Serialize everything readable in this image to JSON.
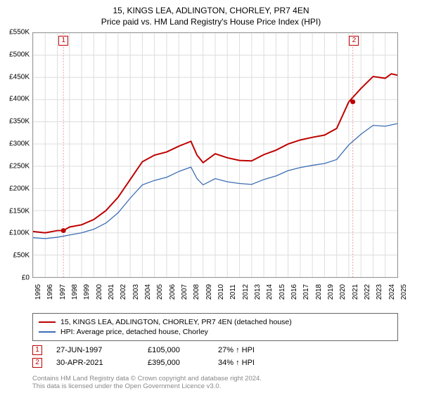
{
  "title": "15, KINGS LEA, ADLINGTON, CHORLEY, PR7 4EN",
  "subtitle": "Price paid vs. HM Land Registry's House Price Index (HPI)",
  "chart": {
    "type": "line",
    "background_color": "#ffffff",
    "border_color": "#999999",
    "grid_color": "#dddddd",
    "ylim": [
      0,
      550000
    ],
    "ytick_step": 50000,
    "y_ticks": [
      "£0",
      "£50K",
      "£100K",
      "£150K",
      "£200K",
      "£250K",
      "£300K",
      "£350K",
      "£400K",
      "£450K",
      "£500K",
      "£550K"
    ],
    "x_years": [
      1995,
      1996,
      1997,
      1998,
      1999,
      2000,
      2001,
      2002,
      2003,
      2004,
      2005,
      2006,
      2007,
      2008,
      2009,
      2010,
      2011,
      2012,
      2013,
      2014,
      2015,
      2016,
      2017,
      2018,
      2019,
      2020,
      2021,
      2022,
      2023,
      2024,
      2025
    ],
    "label_fontsize": 10,
    "series": [
      {
        "name": "15, KINGS LEA, ADLINGTON, CHORLEY, PR7 4EN (detached house)",
        "color": "#be0000",
        "line_width": 2,
        "values": [
          [
            1995,
            103000
          ],
          [
            1996,
            100000
          ],
          [
            1997,
            105000
          ],
          [
            1997.5,
            105000
          ],
          [
            1998,
            113000
          ],
          [
            1999,
            118000
          ],
          [
            2000,
            130000
          ],
          [
            2001,
            150000
          ],
          [
            2002,
            180000
          ],
          [
            2003,
            220000
          ],
          [
            2004,
            260000
          ],
          [
            2005,
            275000
          ],
          [
            2006,
            282000
          ],
          [
            2007,
            295000
          ],
          [
            2008,
            306000
          ],
          [
            2008.5,
            275000
          ],
          [
            2009,
            258000
          ],
          [
            2010,
            278000
          ],
          [
            2011,
            269000
          ],
          [
            2012,
            263000
          ],
          [
            2013,
            262000
          ],
          [
            2014,
            276000
          ],
          [
            2015,
            286000
          ],
          [
            2016,
            300000
          ],
          [
            2017,
            309000
          ],
          [
            2018,
            315000
          ],
          [
            2019,
            320000
          ],
          [
            2020,
            335000
          ],
          [
            2021,
            395000
          ],
          [
            2022,
            425000
          ],
          [
            2023,
            452000
          ],
          [
            2024,
            448000
          ],
          [
            2024.5,
            458000
          ],
          [
            2025,
            455000
          ]
        ]
      },
      {
        "name": "HPI: Average price, detached house, Chorley",
        "color": "#3b6db3",
        "line_width": 1.3,
        "values": [
          [
            1995,
            89000
          ],
          [
            1996,
            87000
          ],
          [
            1997,
            90000
          ],
          [
            1998,
            95000
          ],
          [
            1999,
            100000
          ],
          [
            2000,
            108000
          ],
          [
            2001,
            122000
          ],
          [
            2002,
            145000
          ],
          [
            2003,
            178000
          ],
          [
            2004,
            208000
          ],
          [
            2005,
            218000
          ],
          [
            2006,
            225000
          ],
          [
            2007,
            238000
          ],
          [
            2008,
            248000
          ],
          [
            2008.5,
            222000
          ],
          [
            2009,
            208000
          ],
          [
            2010,
            222000
          ],
          [
            2011,
            215000
          ],
          [
            2012,
            211000
          ],
          [
            2013,
            209000
          ],
          [
            2014,
            220000
          ],
          [
            2015,
            228000
          ],
          [
            2016,
            240000
          ],
          [
            2017,
            247000
          ],
          [
            2018,
            252000
          ],
          [
            2019,
            256000
          ],
          [
            2020,
            265000
          ],
          [
            2021,
            298000
          ],
          [
            2022,
            322000
          ],
          [
            2023,
            342000
          ],
          [
            2024,
            340000
          ],
          [
            2025,
            346000
          ]
        ]
      }
    ],
    "markers": [
      {
        "label": "1",
        "x": 1997.5,
        "y": 105000,
        "color": "#be0000",
        "vline_color": "#e8a0a0"
      },
      {
        "label": "2",
        "x": 2021.33,
        "y": 395000,
        "color": "#be0000",
        "vline_color": "#e8a0a0"
      }
    ],
    "marker_labels_top": [
      {
        "label": "1",
        "x": 1997.5
      },
      {
        "label": "2",
        "x": 2021.33
      }
    ]
  },
  "legend": {
    "items": [
      {
        "color": "#be0000",
        "text": "15, KINGS LEA, ADLINGTON, CHORLEY, PR7 4EN (detached house)"
      },
      {
        "color": "#3b6db3",
        "text": "HPI: Average price, detached house, Chorley"
      }
    ]
  },
  "info_rows": [
    {
      "marker": "1",
      "date": "27-JUN-1997",
      "price": "£105,000",
      "pct": "27% ↑ HPI"
    },
    {
      "marker": "2",
      "date": "30-APR-2021",
      "price": "£395,000",
      "pct": "34% ↑ HPI"
    }
  ],
  "footer_line1": "Contains HM Land Registry data © Crown copyright and database right 2024.",
  "footer_line2": "This data is licensed under the Open Government Licence v3.0."
}
